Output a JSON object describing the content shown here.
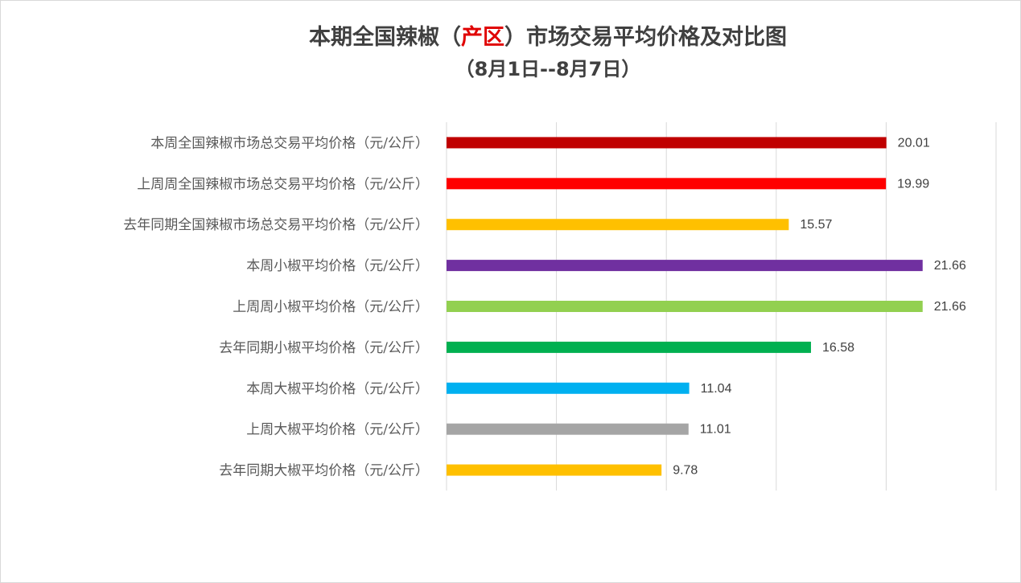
{
  "chart_data": {
    "type": "bar",
    "orientation": "horizontal",
    "title_prefix": "本期全国辣椒（",
    "title_highlight": "产区",
    "title_suffix": "）市场交易平均价格及对比图",
    "subtitle": "（8月1日--8月7日）",
    "xlim": [
      0,
      25
    ],
    "grid": true,
    "categories": [
      "本周全国辣椒市场总交易平均价格（元/公斤）",
      "上周周全国辣椒市场总交易平均价格（元/公斤）",
      "去年同期全国辣椒市场总交易平均价格（元/公斤）",
      "本周小椒平均价格（元/公斤）",
      "上周周小椒平均价格（元/公斤）",
      "去年同期小椒平均价格（元/公斤）",
      "本周大椒平均价格（元/公斤）",
      "上周大椒平均价格（元/公斤）",
      "去年同期大椒平均价格（元/公斤）"
    ],
    "values": [
      20.01,
      19.99,
      15.57,
      21.66,
      21.66,
      16.58,
      11.04,
      11.01,
      9.78
    ],
    "value_labels": [
      "20.01",
      "19.99",
      "15.57",
      "21.66",
      "21.66",
      "16.58",
      "11.04",
      "11.01",
      "9.78"
    ],
    "colors": [
      "#c00000",
      "#ff0000",
      "#ffc000",
      "#7030a0",
      "#92d050",
      "#00b050",
      "#00b0f0",
      "#a5a5a5",
      "#ffc000"
    ],
    "title_highlight_color": "#e00000"
  }
}
